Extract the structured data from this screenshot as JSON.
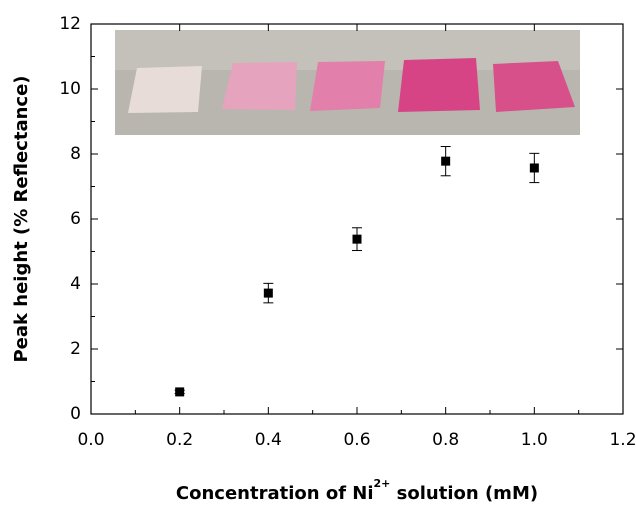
{
  "chart_data": {
    "type": "scatter",
    "xlabel": {
      "text": "Concentration of Ni",
      "superscript": "2+",
      "suffix": " solution (mM)"
    },
    "ylabel": "Peak height (% Reflectance)",
    "x": [
      0.2,
      0.4,
      0.6,
      0.8,
      1.0
    ],
    "values": [
      0.68,
      3.72,
      5.38,
      7.78,
      7.57
    ],
    "errors": [
      0.05,
      0.3,
      0.35,
      0.45,
      0.45
    ],
    "color": "#000000",
    "xlim": [
      0,
      1.2
    ],
    "xticks": [
      {
        "value": 0,
        "label": "0.0"
      },
      0.2,
      0.4,
      0.6,
      0.8,
      {
        "value": 1,
        "label": "1.0"
      },
      1.2
    ],
    "ylim": [
      0,
      12
    ],
    "yticks": [
      0,
      2,
      4,
      6,
      8,
      10,
      12
    ],
    "grid": false
  }
}
